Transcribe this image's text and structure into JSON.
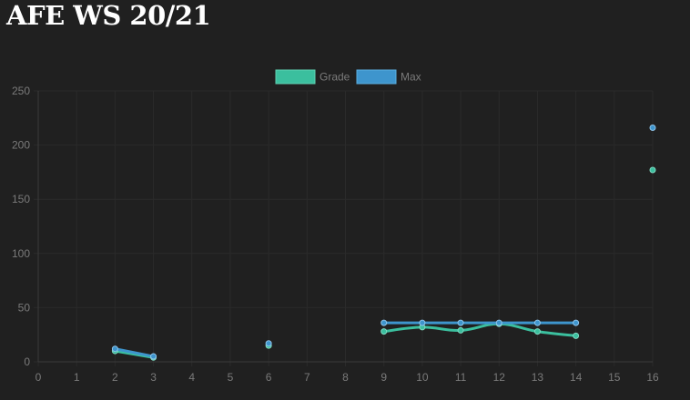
{
  "page": {
    "title": "AFE WS 20/21"
  },
  "chart_data": {
    "type": "line",
    "title": "AFE WS 20/21",
    "xlabel": "",
    "ylabel": "",
    "x_ticks": [
      0,
      1,
      2,
      3,
      4,
      5,
      6,
      7,
      8,
      9,
      10,
      11,
      12,
      13,
      14,
      15,
      16
    ],
    "y_ticks": [
      0,
      50,
      100,
      150,
      200,
      250
    ],
    "xlim": [
      0,
      16
    ],
    "ylim": [
      0,
      250
    ],
    "grid": true,
    "legend_position": "top-center",
    "series": [
      {
        "name": "Grade",
        "color": "#3bbf9e",
        "points": [
          [
            2,
            10
          ],
          [
            3,
            4
          ],
          null,
          [
            6,
            15
          ],
          null,
          [
            9,
            28
          ],
          [
            10,
            32
          ],
          [
            11,
            29
          ],
          [
            12,
            35
          ],
          [
            13,
            28
          ],
          [
            14,
            24
          ],
          null,
          [
            16,
            177
          ]
        ]
      },
      {
        "name": "Max",
        "color": "#3e95cd",
        "points": [
          [
            2,
            12
          ],
          [
            3,
            5
          ],
          null,
          [
            6,
            17
          ],
          null,
          [
            9,
            36
          ],
          [
            10,
            36
          ],
          [
            11,
            36
          ],
          [
            12,
            36
          ],
          [
            13,
            36
          ],
          [
            14,
            36
          ],
          null,
          [
            16,
            216
          ]
        ]
      }
    ]
  }
}
